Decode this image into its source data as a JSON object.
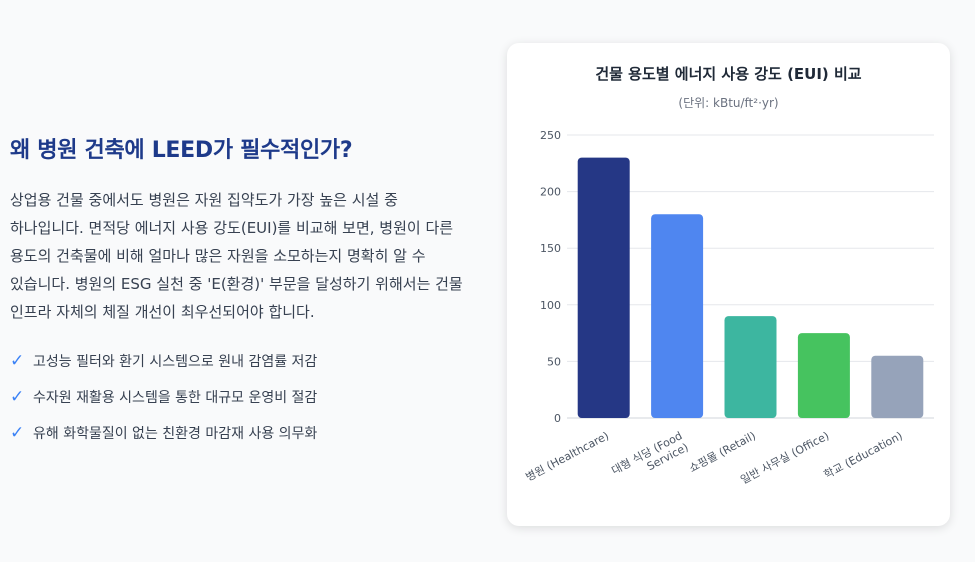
{
  "article": {
    "headline": "왜 병원 건축에 LEED가 필수적인가?",
    "body": "상업용 건물 중에서도 병원은 자원 집약도가 가장 높은 시설 중 하나입니다. 면적당 에너지 사용 강도(EUI)를 비교해 보면, 병원이 다른 용도의 건축물에 비해 얼마나 많은 자원을 소모하는지 명확히 알 수 있습니다. 병원의 ESG 실천 중 'E(환경)' 부문을 달성하기 위해서는 건물 인프라 자체의 체질 개선이 최우선되어야 합니다.",
    "checks": [
      {
        "icon": "✓",
        "text": "고성능 필터와 환기 시스템으로 원내 감염률 저감"
      },
      {
        "icon": "✓",
        "text": "수자원 재활용 시스템을 통한 대규모 운영비 절감"
      },
      {
        "icon": "✓",
        "text": "유해 화학물질이 없는 친환경 마감재 사용 의무화"
      }
    ]
  },
  "colors": {
    "headline": "#1e3a8a",
    "check": "#3b82f6"
  },
  "chart_data": {
    "type": "bar",
    "title": "건물 용도별 에너지 사용 강도 (EUI) 비교",
    "subtitle": "(단위: kBtu/ft²·yr)",
    "categories": [
      "병원 (Healthcare)",
      "대형 식당 (Food Service)",
      "쇼핑몰 (Retail)",
      "일반 사무실 (Office)",
      "학교 (Education)"
    ],
    "category_lines": [
      [
        "병원 (Healthcare)"
      ],
      [
        "대형 식당 (Food",
        "Service)"
      ],
      [
        "쇼핑몰 (Retail)"
      ],
      [
        "일반 사무실 (Office)"
      ],
      [
        "학교 (Education)"
      ]
    ],
    "values": [
      230,
      180,
      90,
      75,
      55
    ],
    "colors": [
      "#253785",
      "#4f86f0",
      "#3db6a0",
      "#46c35f",
      "#96a3ba"
    ],
    "ylim": [
      0,
      250
    ],
    "yticks": [
      0,
      50,
      100,
      150,
      200,
      250
    ],
    "grid": true,
    "legend": "none"
  }
}
